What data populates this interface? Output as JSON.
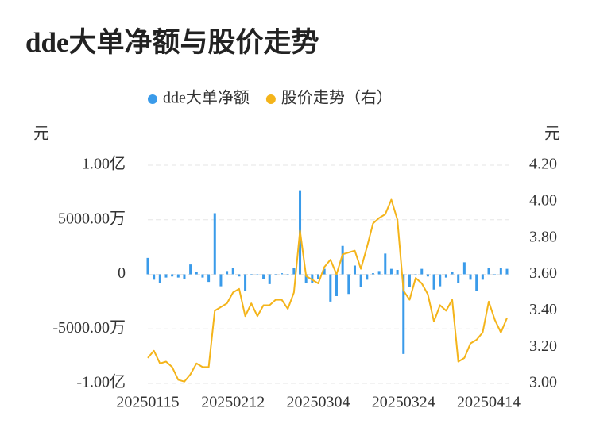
{
  "chart_data": {
    "type": "combo",
    "title": "dde大单净额与股价走势",
    "y_unit": "元",
    "y2_unit": "元",
    "categories": [
      "20250115",
      null,
      null,
      null,
      null,
      null,
      null,
      null,
      null,
      null,
      null,
      null,
      null,
      null,
      "20250212",
      null,
      null,
      null,
      null,
      null,
      null,
      null,
      null,
      null,
      null,
      null,
      null,
      null,
      "20250304",
      null,
      null,
      null,
      null,
      null,
      null,
      null,
      null,
      null,
      null,
      null,
      null,
      null,
      "20250324",
      null,
      null,
      null,
      null,
      null,
      null,
      null,
      null,
      null,
      null,
      null,
      null,
      null,
      "20250414",
      null,
      null,
      null
    ],
    "series": [
      {
        "name": "dde大单净额",
        "type": "bar",
        "color": "#3a9bea",
        "values": [
          1500,
          -500,
          -800,
          -300,
          -200,
          -300,
          -400,
          900,
          200,
          -300,
          -700,
          5600,
          -1100,
          300,
          600,
          -200,
          -1500,
          -100,
          0,
          -400,
          -900,
          0,
          100,
          0,
          600,
          7700,
          -800,
          -800,
          -400,
          500,
          -2500,
          -2000,
          2600,
          -1800,
          800,
          -1200,
          -500,
          100,
          300,
          1900,
          500,
          400,
          -7300,
          -1200,
          0,
          500,
          -200,
          -1400,
          -1100,
          -300,
          200,
          -800,
          1100,
          -500,
          -1500,
          -500,
          600,
          -100,
          600,
          500
        ]
      },
      {
        "name": "股价走势（右）",
        "type": "line",
        "axis": "y2",
        "color": "#f4b41a",
        "values": [
          3.14,
          3.18,
          3.11,
          3.12,
          3.09,
          3.02,
          3.01,
          3.05,
          3.11,
          3.09,
          3.09,
          3.4,
          3.42,
          3.44,
          3.5,
          3.52,
          3.37,
          3.44,
          3.37,
          3.43,
          3.43,
          3.46,
          3.46,
          3.41,
          3.5,
          3.84,
          3.59,
          3.57,
          3.55,
          3.64,
          3.68,
          3.6,
          3.71,
          3.72,
          3.73,
          3.63,
          3.75,
          3.88,
          3.91,
          3.93,
          4.01,
          3.9,
          3.51,
          3.46,
          3.58,
          3.55,
          3.49,
          3.34,
          3.43,
          3.4,
          3.46,
          3.12,
          3.14,
          3.22,
          3.24,
          3.28,
          3.45,
          3.35,
          3.28,
          3.36
        ]
      }
    ],
    "ylim": [
      -10000,
      10000
    ],
    "yticks": [
      {
        "value": -10000,
        "label": "-1.00亿"
      },
      {
        "value": -5000,
        "label": "-5000.00万"
      },
      0,
      {
        "value": 5000,
        "label": "5000.00万"
      },
      {
        "value": 10000,
        "label": "1.00亿"
      }
    ],
    "y2lim": [
      3.0,
      4.2
    ],
    "y2ticks": [
      {
        "value": 3.0,
        "label": "3.00"
      },
      {
        "value": 3.2,
        "label": "3.20"
      },
      {
        "value": 3.4,
        "label": "3.40"
      },
      {
        "value": 3.6,
        "label": "3.60"
      },
      {
        "value": 3.8,
        "label": "3.80"
      },
      {
        "value": 4.0,
        "label": "4.00"
      },
      {
        "value": 4.2,
        "label": "4.20"
      }
    ],
    "grid": true
  }
}
